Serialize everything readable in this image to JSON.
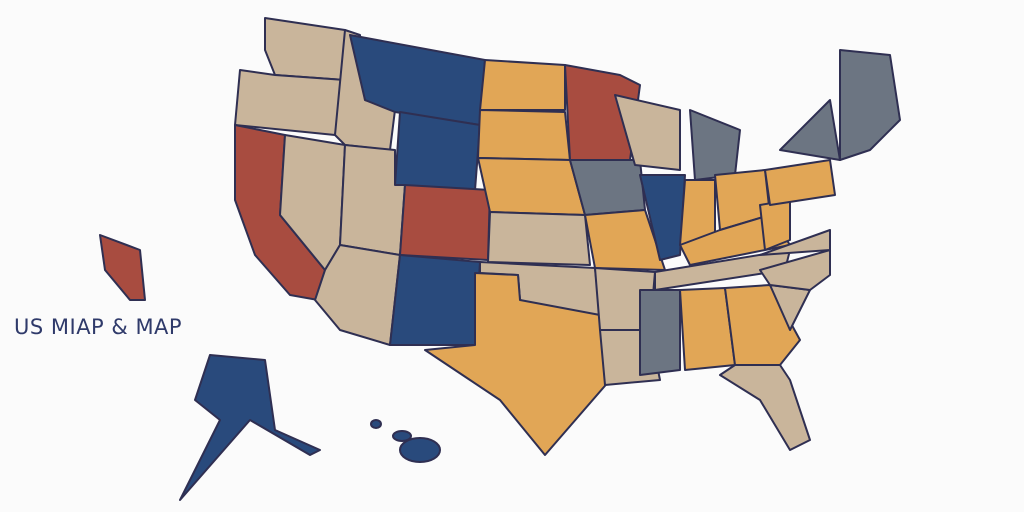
{
  "header": {
    "title": "US MIAP & MAP"
  }
}
